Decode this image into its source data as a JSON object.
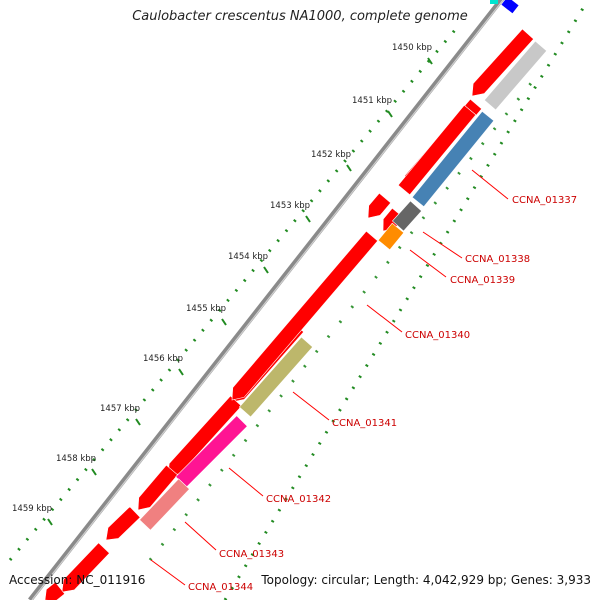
{
  "title": "Caulobacter crescentus NA1000, complete genome",
  "footer": {
    "accession": "Accession: NC_011916",
    "summary": "Topology: circular; Length: 4,042,929 bp; Genes: 3,933"
  },
  "scale": {
    "tick_labels": [
      "1450 kbp",
      "1451 kbp",
      "1452 kbp",
      "1453 kbp",
      "1454 kbp",
      "1455 kbp",
      "1456 kbp",
      "1457 kbp",
      "1458 kbp",
      "1459 kbp"
    ]
  },
  "gene_labels": [
    {
      "id": "CCNA_01337",
      "color": "#4682b4"
    },
    {
      "id": "CCNA_01338",
      "color": "#666666"
    },
    {
      "id": "CCNA_01339",
      "color": "#ff8c00"
    },
    {
      "id": "CCNA_01340",
      "color": "#ff0000"
    },
    {
      "id": "CCNA_01341",
      "color": "#bdb76b"
    },
    {
      "id": "CCNA_01342",
      "color": "#ff1493"
    },
    {
      "id": "CCNA_01343",
      "color": "#f08080"
    },
    {
      "id": "CCNA_01344",
      "color": "#ff0000"
    }
  ],
  "colors": {
    "cds": "#ff0000",
    "backbone": "#7a7a7a",
    "gc_skew": "#228b22",
    "label_line": "#ff0000"
  }
}
